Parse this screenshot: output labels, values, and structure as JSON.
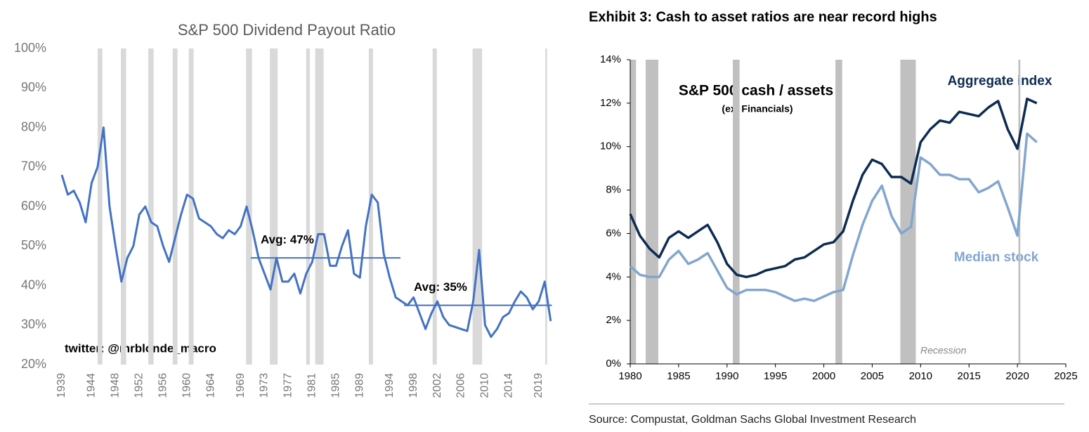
{
  "chart_data": [
    {
      "type": "line",
      "title": "S&P 500 Dividend Payout Ratio",
      "x": [
        1939,
        1940,
        1941,
        1942,
        1943,
        1944,
        1945,
        1946,
        1947,
        1948,
        1949,
        1950,
        1951,
        1952,
        1953,
        1954,
        1955,
        1956,
        1957,
        1958,
        1959,
        1960,
        1961,
        1962,
        1963,
        1964,
        1965,
        1966,
        1967,
        1968,
        1969,
        1970,
        1971,
        1972,
        1973,
        1974,
        1975,
        1976,
        1977,
        1978,
        1979,
        1980,
        1981,
        1982,
        1983,
        1984,
        1985,
        1986,
        1987,
        1988,
        1989,
        1990,
        1991,
        1992,
        1993,
        1994,
        1995,
        1996,
        1997,
        1998,
        1999,
        2000,
        2001,
        2002,
        2003,
        2004,
        2005,
        2006,
        2007,
        2008,
        2009,
        2010,
        2011,
        2012,
        2013,
        2014,
        2015,
        2016,
        2017,
        2018,
        2019,
        2020,
        2021
      ],
      "series": [
        {
          "color": "#4472c4",
          "values": [
            68,
            63,
            64,
            61,
            56,
            66,
            70,
            80,
            60,
            50,
            41,
            47,
            50,
            58,
            60,
            56,
            55,
            50,
            46,
            52,
            58,
            63,
            62,
            57,
            56,
            55,
            53,
            52,
            54,
            53,
            55,
            60,
            54,
            47,
            43,
            39,
            47,
            41,
            41,
            43,
            38,
            43,
            46,
            53,
            53,
            45,
            45,
            50,
            54,
            43,
            42,
            55,
            63,
            61,
            48,
            42,
            37,
            36,
            35,
            37,
            33,
            29,
            33,
            36,
            32,
            30,
            29.5,
            29,
            28.5,
            36,
            49,
            30,
            27,
            29,
            32,
            33,
            36,
            38.5,
            37,
            34,
            36,
            41,
            31
          ]
        }
      ],
      "xlim": [
        1939,
        2021.5
      ],
      "xticks": [
        1939,
        1944,
        1948,
        1952,
        1956,
        1960,
        1964,
        1969,
        1973,
        1977,
        1981,
        1985,
        1989,
        1994,
        1998,
        2002,
        2006,
        2010,
        2014,
        2019
      ],
      "ylim": [
        20,
        100
      ],
      "yticks": [
        {
          "value": 20,
          "label": "20%"
        },
        {
          "value": 30,
          "label": "30%"
        },
        {
          "value": 40,
          "label": "40%"
        },
        {
          "value": 50,
          "label": "50%"
        },
        {
          "value": 60,
          "label": "60%"
        },
        {
          "value": 70,
          "label": "70%"
        },
        {
          "value": 80,
          "label": "80%"
        },
        {
          "value": 90,
          "label": "90%"
        },
        {
          "value": 100,
          "label": "100%"
        }
      ],
      "grid": false,
      "tick_marks": false,
      "recession_color": "#d9d9d9",
      "recessions": [
        [
          1945,
          1945.8
        ],
        [
          1948.9,
          1949.8
        ],
        [
          1953.5,
          1954.4
        ],
        [
          1957.6,
          1958.4
        ],
        [
          1960.3,
          1961.1
        ],
        [
          1969.9,
          1970.9
        ],
        [
          1973.9,
          1975.2
        ],
        [
          1980,
          1980.6
        ],
        [
          1981.5,
          1982.9
        ],
        [
          1990.5,
          1991.2
        ],
        [
          2001.2,
          2001.9
        ],
        [
          2007.9,
          2009.5
        ],
        [
          2020.1,
          2020.4
        ]
      ],
      "avg_lines": [
        {
          "value": 47,
          "x": [
            1970.7,
            1995.8
          ],
          "label": "Avg: 47%"
        },
        {
          "value": 35,
          "x": [
            1996.4,
            2021.2
          ],
          "label": "Avg: 35%"
        }
      ],
      "annotations": [
        "twitter: @mrblonde_macro"
      ]
    },
    {
      "type": "line",
      "title": "Exhibit 3: Cash to asset ratios are near record highs",
      "x": [
        1980,
        1981,
        1982,
        1983,
        1984,
        1985,
        1986,
        1987,
        1988,
        1989,
        1990,
        1991,
        1992,
        1993,
        1994,
        1995,
        1996,
        1997,
        1998,
        1999,
        2000,
        2001,
        2002,
        2003,
        2004,
        2005,
        2006,
        2007,
        2008,
        2009,
        2010,
        2011,
        2012,
        2013,
        2014,
        2015,
        2016,
        2017,
        2018,
        2019,
        2020,
        2021,
        2022
      ],
      "series": [
        {
          "name": "Aggregate index",
          "color": "#0c2c52",
          "values": [
            6.9,
            5.9,
            5.3,
            4.9,
            5.8,
            6.1,
            5.8,
            6.1,
            6.4,
            5.6,
            4.6,
            4.1,
            4.0,
            4.1,
            4.3,
            4.4,
            4.5,
            4.8,
            4.9,
            5.2,
            5.5,
            5.6,
            6.1,
            7.5,
            8.7,
            9.4,
            9.2,
            8.6,
            8.6,
            8.3,
            10.2,
            10.8,
            11.2,
            11.1,
            11.6,
            11.5,
            11.4,
            11.8,
            12.1,
            10.8,
            9.9,
            12.2,
            12.0
          ]
        },
        {
          "name": "Median stock",
          "color": "#82a6cf",
          "values": [
            4.5,
            4.1,
            4.0,
            4.0,
            4.8,
            5.2,
            4.6,
            4.8,
            5.1,
            4.3,
            3.5,
            3.2,
            3.4,
            3.4,
            3.4,
            3.3,
            3.1,
            2.9,
            3.0,
            2.9,
            3.1,
            3.3,
            3.4,
            5.0,
            6.4,
            7.5,
            8.2,
            6.8,
            6.0,
            6.3,
            9.5,
            9.2,
            8.7,
            8.7,
            8.5,
            8.5,
            7.9,
            8.1,
            8.4,
            7.2,
            5.9,
            10.6,
            10.2
          ]
        }
      ],
      "xlim": [
        1980,
        2025
      ],
      "xticks": [
        1980,
        1985,
        1990,
        1995,
        2000,
        2005,
        2010,
        2015,
        2020,
        2025
      ],
      "ylim": [
        0,
        14
      ],
      "yticks": [
        {
          "value": 0,
          "label": "0%"
        },
        {
          "value": 2,
          "label": "2%"
        },
        {
          "value": 4,
          "label": "4%"
        },
        {
          "value": 6,
          "label": "6%"
        },
        {
          "value": 8,
          "label": "8%"
        },
        {
          "value": 10,
          "label": "10%"
        },
        {
          "value": 12,
          "label": "12%"
        },
        {
          "value": 14,
          "label": "14%"
        }
      ],
      "grid": false,
      "tick_marks": true,
      "recession_color": "#c0c0c0",
      "recessions": [
        [
          1980,
          1980.6
        ],
        [
          1981.6,
          1982.9
        ],
        [
          1990.6,
          1991.3
        ],
        [
          2001.2,
          2001.9
        ],
        [
          2007.9,
          2009.5
        ],
        [
          2020.1,
          2020.3
        ]
      ],
      "recession_label": "Recession",
      "annotations": [
        "S&P 500 cash / assets",
        "(ex. Financials)"
      ],
      "source": "Source: Compustat, Goldman Sachs Global Investment Research"
    }
  ]
}
